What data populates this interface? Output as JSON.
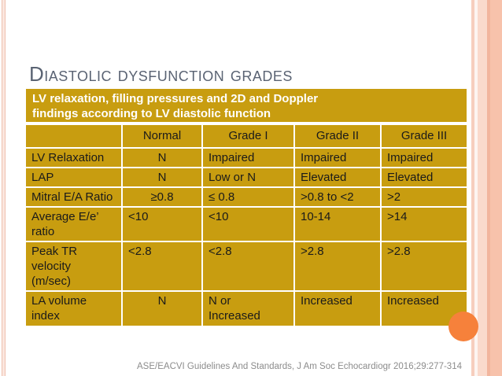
{
  "slide": {
    "title": "Diastolic dysfunction grades",
    "footer_citation": "ASE/EACVI Guidelines And Standards, J Am Soc Echocardiogr 2016;29:277-314"
  },
  "table": {
    "caption": "LV relaxation, filling pressures and 2D and Doppler\nfindings according to LV diastolic function",
    "columns": [
      "",
      "Normal",
      "Grade I",
      "Grade II",
      "Grade III"
    ],
    "rows": [
      {
        "label": "LV Relaxation",
        "values": [
          "N",
          "Impaired",
          "Impaired",
          "Impaired"
        ],
        "align": [
          "center",
          "left",
          "left",
          "left"
        ]
      },
      {
        "label": "LAP",
        "values": [
          "N",
          "Low or N",
          "Elevated",
          "Elevated"
        ],
        "align": [
          "center",
          "left",
          "left",
          "left"
        ]
      },
      {
        "label": "Mitral E/A Ratio",
        "values": [
          "≥0.8",
          "≤ 0.8",
          ">0.8 to <2",
          ">2"
        ],
        "align": [
          "center",
          "left",
          "left",
          "left"
        ]
      },
      {
        "label": "Average E/e’\nratio",
        "values": [
          "<10",
          "<10",
          "10-14",
          ">14"
        ],
        "align": [
          "left",
          "left",
          "left",
          "left"
        ]
      },
      {
        "label": "Peak TR velocity\n(m/sec)",
        "values": [
          "<2.8",
          "<2.8",
          ">2.8",
          ">2.8"
        ],
        "align": [
          "left",
          "left",
          "left",
          "left"
        ]
      },
      {
        "label": "LA volume index",
        "values": [
          "N",
          "N or\nIncreased",
          "Increased",
          "Increased"
        ],
        "align": [
          "center",
          "left",
          "left",
          "left"
        ]
      }
    ]
  },
  "colors": {
    "table_gold": "#C89D10",
    "caption_text": "#FFFFFF",
    "cell_text": "#1A1A1A",
    "title_text": "#5A6373",
    "footer_text": "#8C8C8C",
    "accent_circle_orange": "#F6813B",
    "frame_stripe_pink": "#F7C2AB"
  }
}
